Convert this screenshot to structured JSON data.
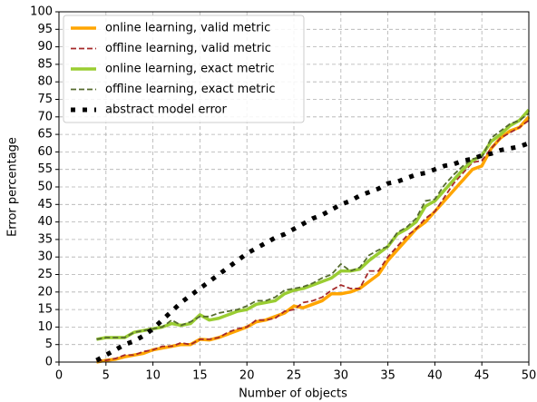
{
  "chart_data": {
    "type": "line",
    "x_label": "Number of objects",
    "y_label": "Error percentage",
    "xlim": [
      0,
      50
    ],
    "ylim": [
      0,
      100
    ],
    "xticks": [
      0,
      5,
      10,
      15,
      20,
      25,
      30,
      35,
      40,
      45,
      50
    ],
    "yticks": [
      0,
      5,
      10,
      15,
      20,
      25,
      30,
      35,
      40,
      45,
      50,
      55,
      60,
      65,
      70,
      75,
      80,
      85,
      90,
      95,
      100
    ],
    "grid": true,
    "legend": "upper left",
    "x": [
      4,
      5,
      6,
      7,
      8,
      9,
      10,
      11,
      12,
      13,
      14,
      15,
      16,
      17,
      18,
      19,
      20,
      21,
      22,
      23,
      24,
      25,
      26,
      27,
      28,
      29,
      30,
      31,
      32,
      33,
      34,
      35,
      36,
      37,
      38,
      39,
      40,
      41,
      42,
      43,
      44,
      45,
      46,
      47,
      48,
      49,
      50
    ],
    "series": [
      {
        "name": "online learning, valid metric",
        "color": "#ffa500",
        "linestyle": "solid",
        "width": 3.5,
        "values": [
          0,
          0.5,
          0.8,
          1.5,
          2,
          2.5,
          3.5,
          4,
          4.5,
          5,
          5,
          6.5,
          6.3,
          7,
          8,
          9,
          10,
          11.5,
          12,
          13,
          14,
          16,
          15.5,
          16.5,
          17.5,
          19.5,
          19.5,
          20,
          21,
          23,
          25,
          29,
          32,
          35,
          38,
          40,
          43,
          46,
          49,
          52,
          55,
          56,
          61,
          64,
          66,
          67,
          70
        ]
      },
      {
        "name": "offline learning, valid metric",
        "color": "#a52a2a",
        "linestyle": "dashed",
        "width": 1.8,
        "values": [
          0.5,
          0.5,
          1,
          2,
          2,
          3,
          3.5,
          4.5,
          4.5,
          5.5,
          5,
          6.5,
          6.5,
          7,
          8.5,
          9.5,
          10,
          12,
          12,
          12.5,
          14.5,
          15,
          17,
          17.5,
          18.5,
          20.5,
          22,
          21,
          21,
          26,
          26,
          30,
          33,
          36,
          38,
          41,
          43,
          47,
          51,
          54,
          57,
          57.5,
          61,
          64,
          65.5,
          67,
          69
        ]
      },
      {
        "name": "online learning, exact metric",
        "color": "#9acd32",
        "linestyle": "solid",
        "width": 3.5,
        "values": [
          6.5,
          7,
          7,
          7,
          8.5,
          9,
          9.5,
          10,
          11,
          10.5,
          11,
          13.5,
          12,
          12.5,
          13.5,
          14.5,
          15,
          16.5,
          17,
          17.5,
          19.5,
          20.5,
          21,
          22,
          23,
          24,
          26,
          26,
          26.5,
          29,
          31,
          33,
          36.5,
          38,
          40,
          44.5,
          46,
          49,
          52,
          55,
          57.5,
          59,
          63,
          65,
          67.5,
          69,
          72
        ]
      },
      {
        "name": "offline learning, exact metric",
        "color": "#556b2f",
        "linestyle": "dashed",
        "width": 1.8,
        "values": [
          6.5,
          7,
          7,
          7,
          8.5,
          9,
          9.5,
          10,
          12,
          10.5,
          11.5,
          13,
          13,
          14,
          14.5,
          15,
          16,
          17.5,
          17.5,
          18.5,
          20.5,
          21,
          21.5,
          22.5,
          24,
          25,
          28,
          26,
          27,
          30.5,
          32,
          33,
          37,
          38.5,
          41,
          46,
          46.5,
          50.5,
          53.5,
          56,
          58,
          58.5,
          64,
          66,
          68,
          69,
          71
        ]
      },
      {
        "name": "abstract model error",
        "color": "#000000",
        "linestyle": "dotted",
        "width": 5,
        "values": [
          0.5,
          2,
          3.5,
          5,
          6,
          7.5,
          9.5,
          12,
          14.5,
          17,
          19,
          21,
          23,
          25,
          27,
          29,
          31,
          32.5,
          34,
          35.5,
          36.5,
          38,
          39.5,
          41,
          42,
          43.5,
          45,
          46,
          47.5,
          48.5,
          49.5,
          51,
          51.5,
          52.5,
          53.5,
          54,
          55,
          56,
          56.5,
          57.5,
          58,
          59,
          59.5,
          60.5,
          61,
          61.5,
          62.5
        ]
      }
    ]
  }
}
